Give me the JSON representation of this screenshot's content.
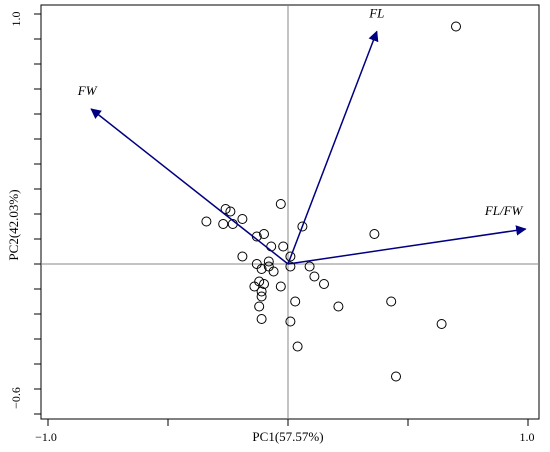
{
  "chart_data": {
    "type": "scatter",
    "subtype": "pca-biplot",
    "xlabel": "PC1(57.57%)",
    "ylabel": "PC2(42.03%)",
    "xlim": [
      -1.0,
      1.0
    ],
    "ylim": [
      -0.6,
      1.0
    ],
    "x_tick_labels": [
      "-1.0",
      "1.0"
    ],
    "y_tick_labels": [
      "1.0",
      "-0.6"
    ],
    "x_tick_labels_display": [
      "−1.0",
      "1.0"
    ],
    "y_tick_labels_display": [
      "1.0",
      "−0.6"
    ],
    "reference_lines": {
      "x": 0,
      "y": 0
    },
    "grid": false,
    "legend": "none",
    "vector_color": "#000080",
    "point_style": "open-circle",
    "vectors": [
      {
        "label": "FL",
        "x": 0.37,
        "y": 0.93
      },
      {
        "label": "FW",
        "x": -0.82,
        "y": 0.62
      },
      {
        "label": "FL/FW",
        "x": 0.99,
        "y": 0.14
      }
    ],
    "points": [
      {
        "x": 0.7,
        "y": 0.95
      },
      {
        "x": -0.34,
        "y": 0.17
      },
      {
        "x": -0.26,
        "y": 0.22
      },
      {
        "x": -0.24,
        "y": 0.21
      },
      {
        "x": -0.19,
        "y": 0.18
      },
      {
        "x": -0.23,
        "y": 0.16
      },
      {
        "x": -0.27,
        "y": 0.16
      },
      {
        "x": -0.03,
        "y": 0.24
      },
      {
        "x": 0.06,
        "y": 0.15
      },
      {
        "x": -0.13,
        "y": 0.11
      },
      {
        "x": -0.1,
        "y": 0.12
      },
      {
        "x": -0.07,
        "y": 0.07
      },
      {
        "x": -0.02,
        "y": 0.07
      },
      {
        "x": 0.01,
        "y": 0.03
      },
      {
        "x": -0.19,
        "y": 0.03
      },
      {
        "x": 0.36,
        "y": 0.12
      },
      {
        "x": -0.08,
        "y": 0.01
      },
      {
        "x": -0.08,
        "y": -0.01
      },
      {
        "x": -0.13,
        "y": 0.0
      },
      {
        "x": -0.11,
        "y": -0.02
      },
      {
        "x": -0.06,
        "y": -0.03
      },
      {
        "x": 0.01,
        "y": -0.01
      },
      {
        "x": 0.09,
        "y": -0.01
      },
      {
        "x": 0.11,
        "y": -0.05
      },
      {
        "x": -0.12,
        "y": -0.07
      },
      {
        "x": -0.1,
        "y": -0.08
      },
      {
        "x": -0.14,
        "y": -0.09
      },
      {
        "x": 0.15,
        "y": -0.08
      },
      {
        "x": -0.03,
        "y": -0.09
      },
      {
        "x": -0.11,
        "y": -0.11
      },
      {
        "x": -0.11,
        "y": -0.13
      },
      {
        "x": 0.03,
        "y": -0.15
      },
      {
        "x": 0.21,
        "y": -0.17
      },
      {
        "x": -0.12,
        "y": -0.17
      },
      {
        "x": 0.43,
        "y": -0.15
      },
      {
        "x": -0.11,
        "y": -0.22
      },
      {
        "x": 0.01,
        "y": -0.23
      },
      {
        "x": 0.64,
        "y": -0.24
      },
      {
        "x": 0.04,
        "y": -0.33
      },
      {
        "x": 0.45,
        "y": -0.45
      }
    ]
  }
}
